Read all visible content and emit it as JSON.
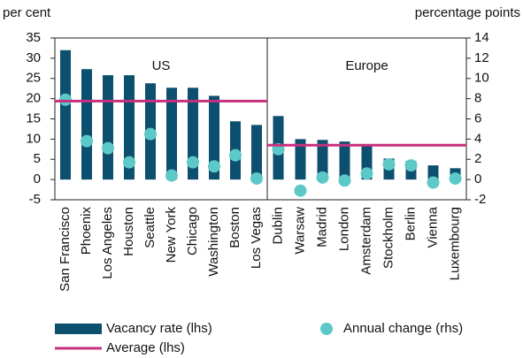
{
  "chart_data": [
    {
      "type": "bar",
      "title": "US",
      "ylabel": "per cent",
      "y2label": "percentage points",
      "ylim": [
        -5,
        35
      ],
      "yticks": [
        -5,
        0,
        5,
        10,
        15,
        20,
        25,
        30,
        35
      ],
      "y2lim": [
        -2,
        14
      ],
      "y2ticks": [
        -2,
        0,
        2,
        4,
        6,
        8,
        10,
        12,
        14
      ],
      "categories": [
        "San Francisco",
        "Phoenix",
        "Los Angeles",
        "Houston",
        "Seattle",
        "New York",
        "Chicago",
        "Washington",
        "Boston",
        "Los Vegas"
      ],
      "series": [
        {
          "name": "Vacancy rate (lhs)",
          "type": "bar",
          "color": "#0d4f6e",
          "values": [
            32,
            27.3,
            25.8,
            25.8,
            23.8,
            22.7,
            22.7,
            20.7,
            14.4,
            13.5
          ]
        },
        {
          "name": "Annual change (rhs)",
          "type": "scatter",
          "axis": "y2",
          "color": "#5cc8c8",
          "values": [
            7.9,
            3.8,
            3.1,
            1.7,
            4.5,
            0.4,
            1.7,
            1.3,
            2.4,
            0.1
          ]
        },
        {
          "name": "Average (lhs)",
          "type": "hline",
          "color": "#c8307f",
          "value": 19.4
        }
      ]
    },
    {
      "type": "bar",
      "title": "Europe",
      "categories": [
        "Dublin",
        "Warsaw",
        "Madrid",
        "London",
        "Amsterdam",
        "Stockholm",
        "Berlin",
        "Vienna",
        "Luxembourg"
      ],
      "series": [
        {
          "type": "bar",
          "color": "#0d4f6e",
          "values": [
            15.7,
            10,
            9.8,
            9.4,
            8.5,
            5.2,
            4.6,
            3.5,
            2.8
          ]
        },
        {
          "type": "scatter",
          "axis": "y2",
          "color": "#5cc8c8",
          "values": [
            3.0,
            -1.1,
            0.2,
            -0.1,
            0.6,
            1.5,
            1.4,
            -0.3,
            0.1
          ]
        },
        {
          "type": "hline",
          "color": "#c8307f",
          "value": 8.5
        }
      ]
    }
  ]
}
